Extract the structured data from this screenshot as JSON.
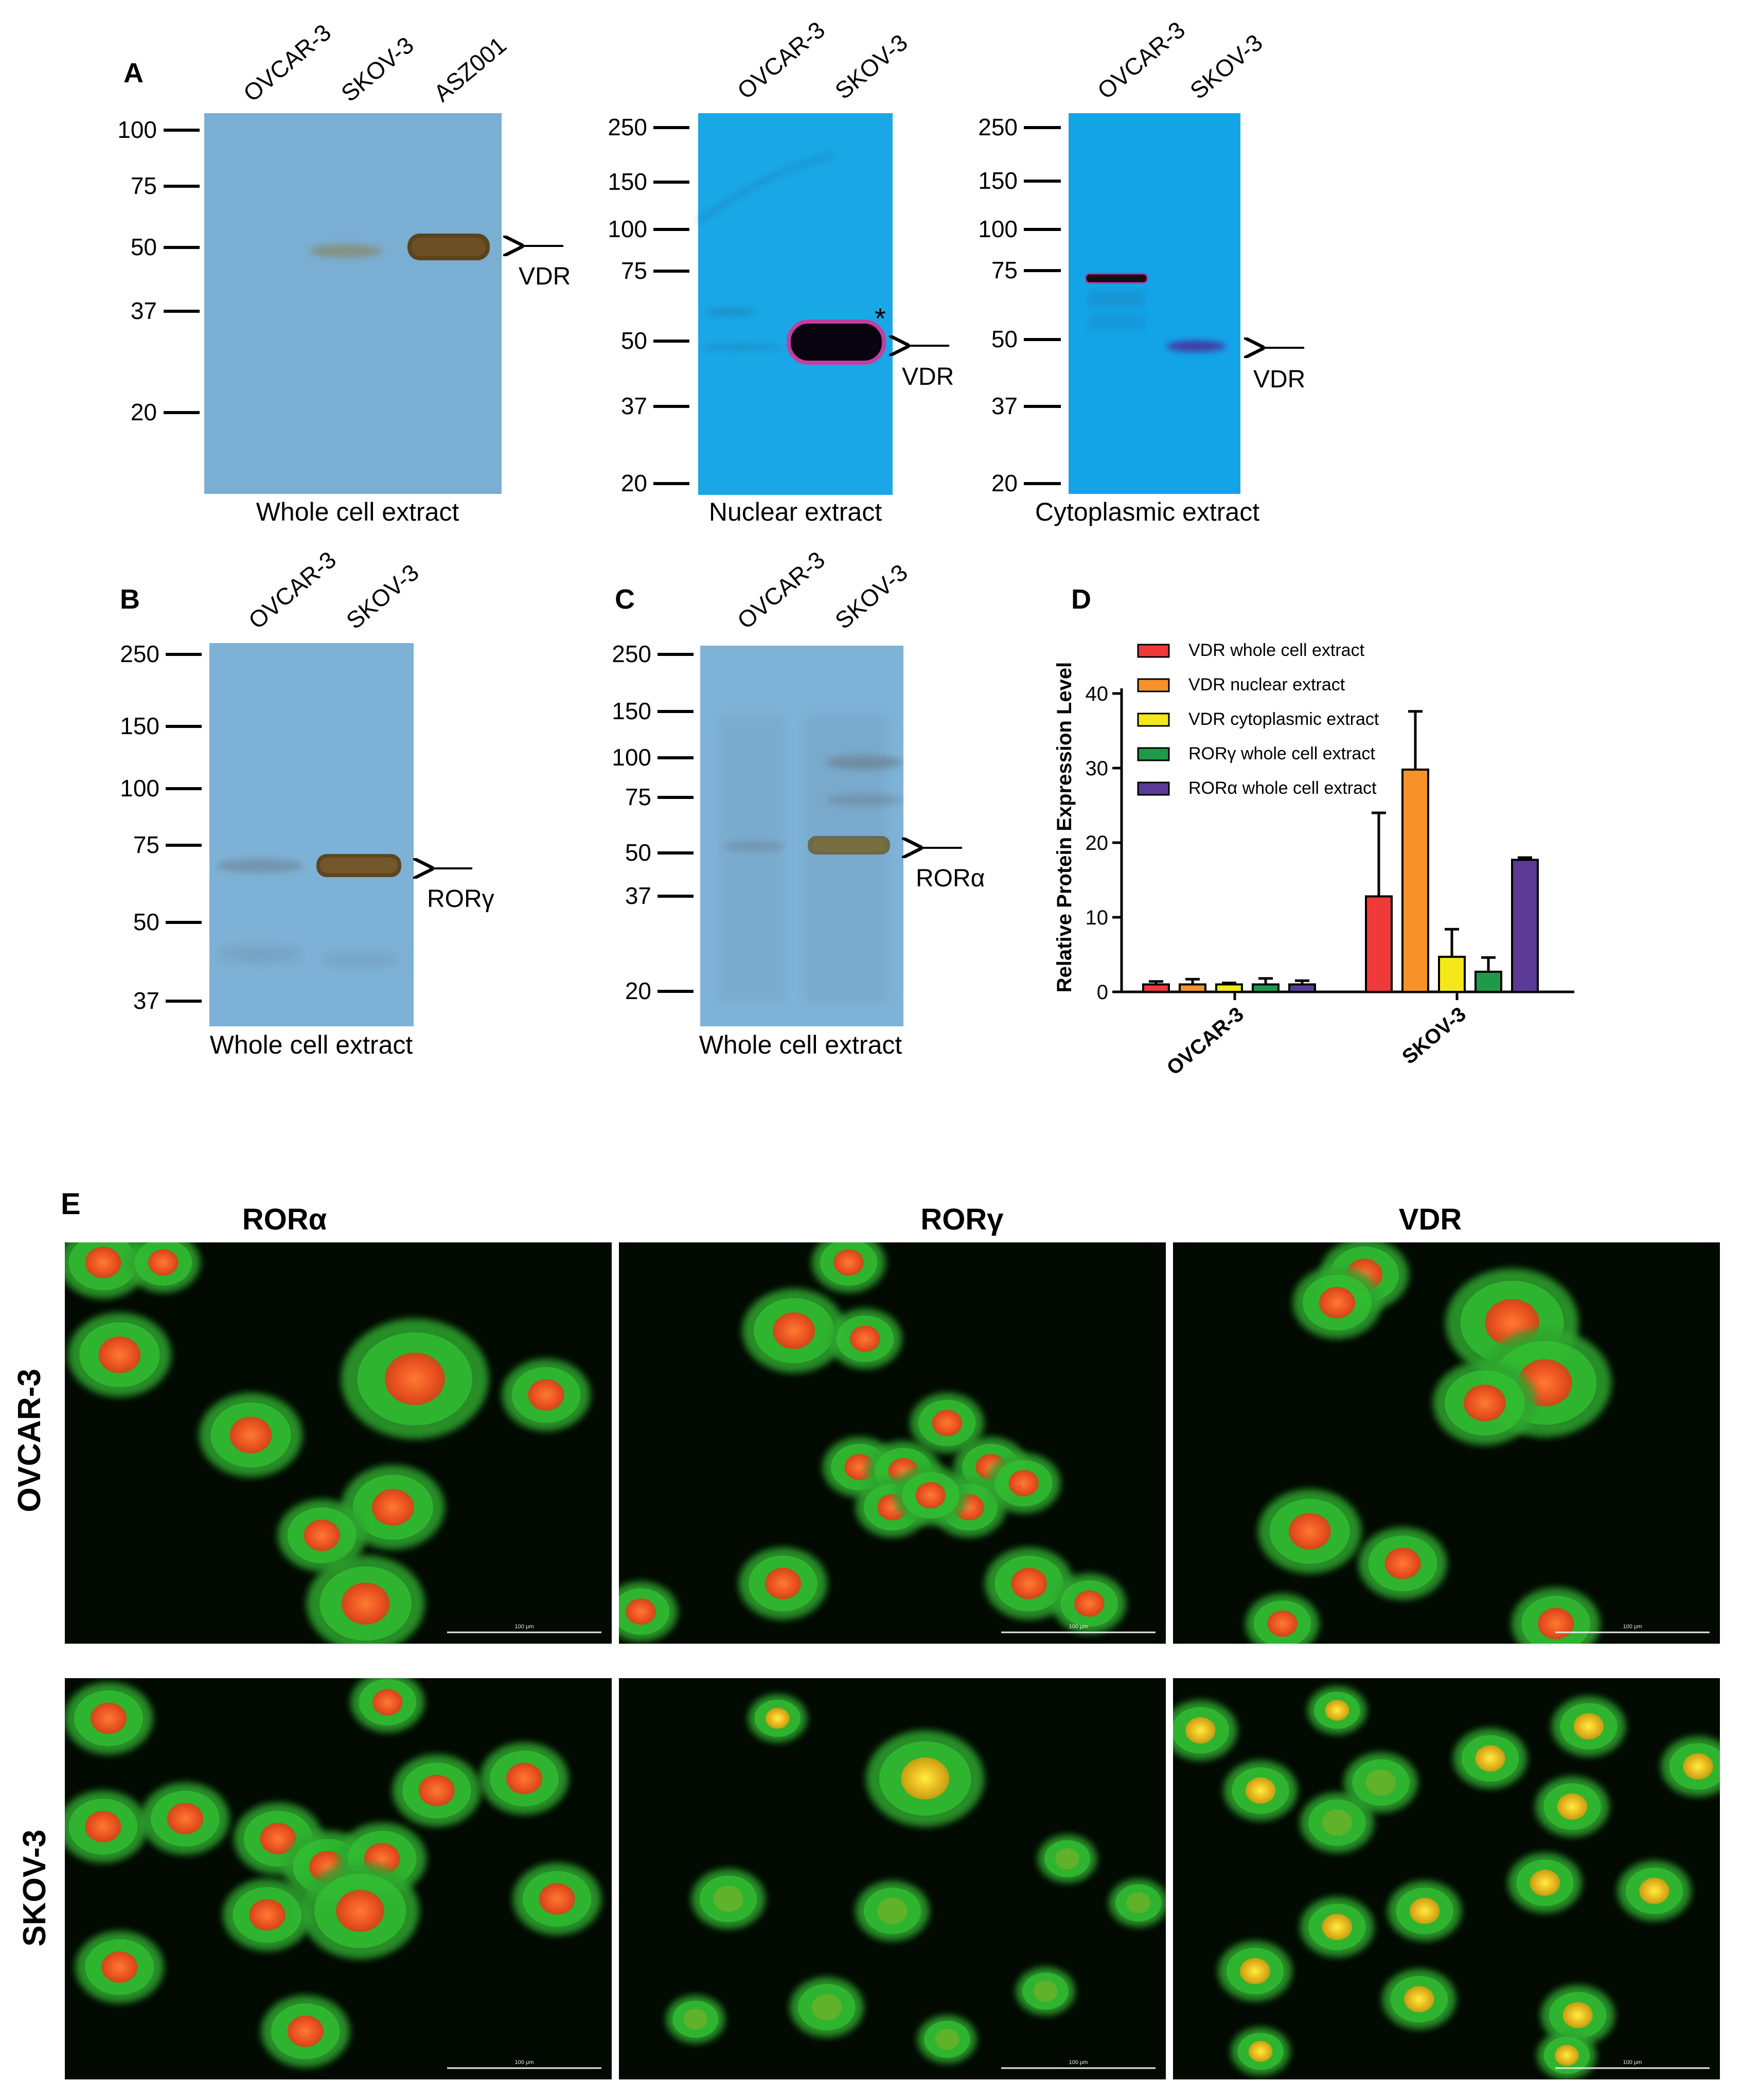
{
  "panel_letters": {
    "a": "A",
    "b": "B",
    "c": "C",
    "d": "D",
    "e": "E"
  },
  "blots": {
    "whole_vdr": {
      "lanes": [
        "OVCAR-3",
        "SKOV-3",
        "ASZ001"
      ],
      "markers": [
        "100",
        "75",
        "50",
        "37",
        "20"
      ],
      "arrow_label": "VDR",
      "caption": "Whole cell extract",
      "color": "#7aaed3"
    },
    "nuclear_vdr": {
      "lanes": [
        "OVCAR-3",
        "SKOV-3"
      ],
      "markers": [
        "250",
        "150",
        "100",
        "75",
        "50",
        "37",
        "20"
      ],
      "arrow_label": "VDR",
      "asterisk": "*",
      "caption": "Nuclear extract",
      "color": "#1aa7e6"
    },
    "cyto_vdr": {
      "lanes": [
        "OVCAR-3",
        "SKOV-3"
      ],
      "markers": [
        "250",
        "150",
        "100",
        "75",
        "50",
        "37",
        "20"
      ],
      "arrow_label": "VDR",
      "caption": "Cytoplasmic extract",
      "color": "#13a4e8"
    },
    "whole_rorg": {
      "lanes": [
        "OVCAR-3",
        "SKOV-3"
      ],
      "markers": [
        "250",
        "150",
        "100",
        "75",
        "50",
        "37"
      ],
      "arrow_label": "RORγ",
      "caption": "Whole cell extract",
      "color": "#7eb1d6"
    },
    "whole_rora": {
      "lanes": [
        "OVCAR-3",
        "SKOV-3"
      ],
      "markers": [
        "250",
        "150",
        "100",
        "75",
        "50",
        "37",
        "20"
      ],
      "arrow_label": "RORα",
      "caption": "Whole cell extract",
      "color": "#7eb3d8"
    }
  },
  "chart_data": {
    "type": "bar",
    "title": "",
    "xlabel": "",
    "ylabel": "Relative Protein Expression Level",
    "ylim": [
      0,
      40
    ],
    "yticks": [
      "0",
      "10",
      "20",
      "30",
      "40"
    ],
    "categories": [
      "OVCAR-3",
      "SKOV-3"
    ],
    "legend_position": "top-left",
    "series": [
      {
        "name": "VDR whole cell extract",
        "color": "#f03a3a",
        "values": [
          1.0,
          12.8
        ],
        "errors": [
          0.4,
          11.2
        ]
      },
      {
        "name": "VDR nuclear extract",
        "color": "#f7922a",
        "values": [
          1.0,
          29.8
        ],
        "errors": [
          0.7,
          7.8
        ]
      },
      {
        "name": "VDR cytoplasmic extract",
        "color": "#f5e81a",
        "values": [
          1.0,
          4.7
        ],
        "errors": [
          0.2,
          3.7
        ]
      },
      {
        "name": "RORγ whole cell extract",
        "color": "#1e9a48",
        "values": [
          1.0,
          2.7
        ],
        "errors": [
          0.8,
          1.9
        ]
      },
      {
        "name": "RORα whole cell extract",
        "color": "#5c3b96",
        "values": [
          1.0,
          17.7
        ],
        "errors": [
          0.5,
          0.3
        ]
      }
    ]
  },
  "micrographs": {
    "columns": [
      "RORα",
      "RORγ",
      "VDR"
    ],
    "rows": [
      "OVCAR-3",
      "SKOV-3"
    ],
    "scale_bar_label": "100 μm"
  }
}
